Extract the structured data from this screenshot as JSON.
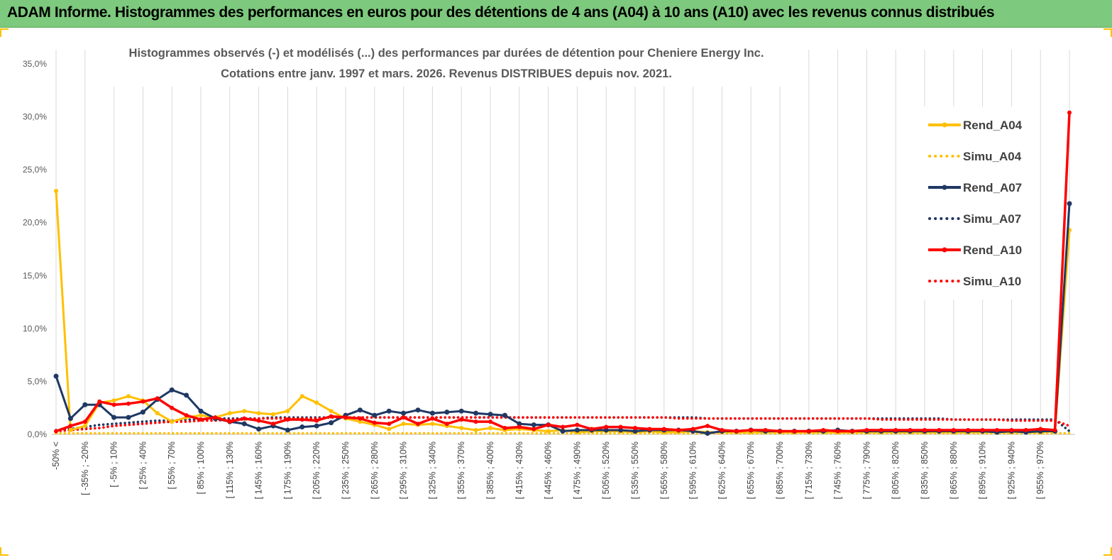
{
  "header": {
    "title": "ADAM Informe. Histogrammes des performances en euros pour des détentions de 4 ans (A04) à 10 ans (A10) avec les revenus connus distribués"
  },
  "chart_data": {
    "type": "line",
    "title": "Histogrammes observés (-) et modélisés (...)  des performances par durées de détention pour Cheniere Energy Inc.",
    "subtitle": "Cotations entre janv. 1997 et mars. 2026. Revenus DISTRIBUES depuis nov. 2021.",
    "y_ticks": [
      "0,0%",
      "5,0%",
      "10,0%",
      "15,0%",
      "20,0%",
      "25,0%",
      "30,0%",
      "35,0%"
    ],
    "ylim": [
      0,
      35
    ],
    "y_unit": "%",
    "x_tick_labels": [
      "-50% <",
      "[ -35% ; -20%",
      "[ -5% ; 10%",
      "[ 25% ; 40%",
      "[ 55% ; 70%",
      "[ 85% ; 100%",
      "[ 115% ; 130%",
      "[ 145% ; 160%",
      "[ 175% ; 190%",
      "[ 205% ; 220%",
      "[ 235% ; 250%",
      "[ 265% ; 280%",
      "[ 295% ; 310%",
      "[ 325% ; 340%",
      "[ 355% ; 370%",
      "[ 385% ; 400%",
      "[ 415% ; 430%",
      "[ 445% ; 460%",
      "[ 475% ; 490%",
      "[ 505% ; 520%",
      "[ 535% ; 550%",
      "[ 565% ; 580%",
      "[ 595% ; 610%",
      "[ 625% ; 640%",
      "[ 655% ; 670%",
      "[ 685% ; 700%",
      "[ 715% ; 730%",
      "[ 745% ; 760%",
      "[ 775% ; 790%",
      "[ 805% ; 820%",
      "[ 835% ; 850%",
      "[ 865% ; 880%",
      "[ 895% ; 910%",
      "[ 925% ; 940%",
      "[ 955% ; 970%"
    ],
    "category_count": 71,
    "grid": "vertical",
    "legend_position": "right",
    "series": [
      {
        "name": "Rend_A04",
        "style": "solid",
        "color": "#ffc000",
        "values": [
          23.0,
          0.4,
          0.8,
          3.0,
          3.2,
          3.6,
          3.2,
          2.0,
          1.2,
          1.6,
          1.8,
          1.6,
          2.0,
          2.2,
          2.0,
          1.9,
          2.2,
          3.6,
          3.0,
          2.2,
          1.5,
          1.2,
          0.9,
          0.5,
          1.0,
          0.9,
          1.0,
          0.8,
          0.6,
          0.4,
          0.6,
          0.4,
          0.5,
          0.4,
          0.3,
          0.4,
          0.2,
          0.3,
          0.3,
          0.3,
          0.2,
          0.3,
          0.2,
          0.2,
          0.3,
          0.2,
          0.2,
          0.2,
          0.2,
          0.2,
          0.2,
          0.2,
          0.2,
          0.2,
          0.2,
          0.2,
          0.2,
          0.2,
          0.2,
          0.2,
          0.2,
          0.2,
          0.2,
          0.2,
          0.2,
          0.2,
          0.2,
          0.2,
          0.2,
          0.3,
          19.3
        ]
      },
      {
        "name": "Simu_A04",
        "style": "dotted",
        "color": "#ffc000",
        "values": [
          0.1,
          0.1,
          0.1,
          0.1,
          0.1,
          0.1,
          0.1,
          0.1,
          0.1,
          0.1,
          0.1,
          0.1,
          0.1,
          0.1,
          0.1,
          0.1,
          0.1,
          0.1,
          0.1,
          0.1,
          0.1,
          0.1,
          0.1,
          0.1,
          0.1,
          0.1,
          0.1,
          0.1,
          0.1,
          0.1,
          0.1,
          0.1,
          0.1,
          0.1,
          0.1,
          0.1,
          0.1,
          0.1,
          0.1,
          0.1,
          0.1,
          0.1,
          0.1,
          0.1,
          0.1,
          0.1,
          0.1,
          0.1,
          0.1,
          0.1,
          0.1,
          0.1,
          0.1,
          0.1,
          0.1,
          0.1,
          0.1,
          0.1,
          0.1,
          0.1,
          0.1,
          0.1,
          0.1,
          0.1,
          0.1,
          0.1,
          0.1,
          0.1,
          0.1,
          0.1,
          0.1
        ]
      },
      {
        "name": "Rend_A07",
        "style": "solid",
        "color": "#1f3864",
        "values": [
          5.5,
          1.5,
          2.8,
          2.8,
          1.6,
          1.6,
          2.1,
          3.3,
          4.2,
          3.7,
          2.2,
          1.5,
          1.2,
          1.0,
          0.5,
          0.8,
          0.4,
          0.7,
          0.8,
          1.1,
          1.8,
          2.3,
          1.8,
          2.2,
          2.0,
          2.3,
          2.0,
          2.1,
          2.2,
          2.0,
          1.9,
          1.8,
          1.0,
          0.9,
          0.9,
          0.3,
          0.4,
          0.4,
          0.4,
          0.4,
          0.3,
          0.4,
          0.4,
          0.4,
          0.3,
          0.1,
          0.3,
          0.3,
          0.4,
          0.3,
          0.3,
          0.3,
          0.3,
          0.3,
          0.4,
          0.3,
          0.3,
          0.3,
          0.3,
          0.3,
          0.3,
          0.3,
          0.3,
          0.3,
          0.3,
          0.2,
          0.3,
          0.2,
          0.3,
          0.3,
          21.8
        ]
      },
      {
        "name": "Simu_A07",
        "style": "dotted",
        "color": "#1f3864",
        "values": [
          0.4,
          0.5,
          0.7,
          0.9,
          1.0,
          1.1,
          1.2,
          1.3,
          1.3,
          1.4,
          1.4,
          1.5,
          1.5,
          1.5,
          1.5,
          1.6,
          1.6,
          1.6,
          1.6,
          1.6,
          1.6,
          1.6,
          1.6,
          1.6,
          1.6,
          1.6,
          1.6,
          1.6,
          1.6,
          1.6,
          1.6,
          1.6,
          1.6,
          1.6,
          1.6,
          1.6,
          1.6,
          1.6,
          1.6,
          1.6,
          1.6,
          1.6,
          1.6,
          1.6,
          1.6,
          1.5,
          1.5,
          1.5,
          1.5,
          1.5,
          1.5,
          1.5,
          1.5,
          1.5,
          1.5,
          1.5,
          1.5,
          1.5,
          1.5,
          1.5,
          1.5,
          1.5,
          1.4,
          1.4,
          1.4,
          1.4,
          1.4,
          1.4,
          1.4,
          1.4,
          0.3
        ]
      },
      {
        "name": "Rend_A10",
        "style": "solid",
        "color": "#ff0000",
        "values": [
          0.3,
          0.8,
          1.2,
          3.1,
          2.8,
          2.9,
          3.1,
          3.4,
          2.5,
          1.8,
          1.4,
          1.6,
          1.2,
          1.5,
          1.3,
          1.0,
          1.4,
          1.4,
          1.3,
          1.7,
          1.6,
          1.5,
          1.1,
          1.0,
          1.6,
          1.0,
          1.5,
          1.0,
          1.4,
          1.2,
          1.2,
          0.6,
          0.7,
          0.5,
          0.9,
          0.7,
          0.9,
          0.5,
          0.7,
          0.7,
          0.6,
          0.5,
          0.5,
          0.4,
          0.5,
          0.8,
          0.4,
          0.3,
          0.4,
          0.4,
          0.3,
          0.3,
          0.3,
          0.4,
          0.3,
          0.3,
          0.4,
          0.4,
          0.4,
          0.4,
          0.4,
          0.4,
          0.4,
          0.4,
          0.4,
          0.4,
          0.4,
          0.4,
          0.5,
          0.4,
          30.4
        ]
      },
      {
        "name": "Simu_A10",
        "style": "dotted",
        "color": "#ff0000",
        "values": [
          0.3,
          0.4,
          0.5,
          0.6,
          0.8,
          0.9,
          1.0,
          1.1,
          1.2,
          1.2,
          1.3,
          1.3,
          1.4,
          1.4,
          1.5,
          1.5,
          1.5,
          1.5,
          1.5,
          1.6,
          1.6,
          1.6,
          1.6,
          1.6,
          1.6,
          1.6,
          1.6,
          1.6,
          1.6,
          1.6,
          1.6,
          1.6,
          1.6,
          1.6,
          1.6,
          1.6,
          1.6,
          1.6,
          1.6,
          1.6,
          1.6,
          1.6,
          1.6,
          1.5,
          1.5,
          1.5,
          1.5,
          1.5,
          1.5,
          1.5,
          1.5,
          1.5,
          1.5,
          1.5,
          1.5,
          1.5,
          1.5,
          1.4,
          1.4,
          1.4,
          1.4,
          1.4,
          1.4,
          1.4,
          1.4,
          1.4,
          1.3,
          1.3,
          1.3,
          1.3,
          0.8
        ]
      }
    ]
  }
}
